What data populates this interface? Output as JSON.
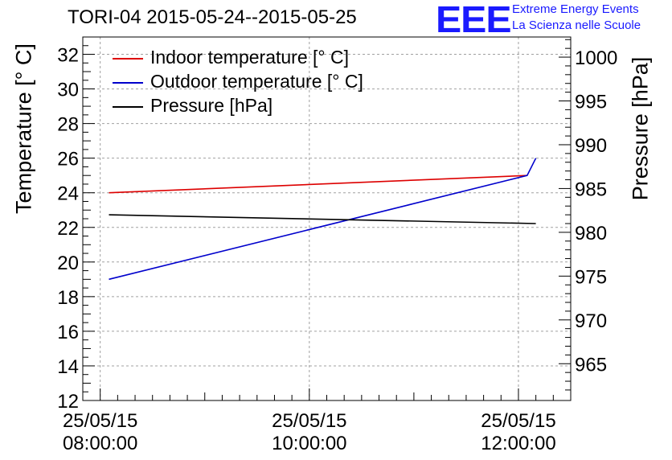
{
  "title": "TORI-04 2015-05-24--2015-05-25",
  "logo": {
    "mark": "EEE",
    "line1": "Extreme Energy Events",
    "line2": "La Scienza nelle Scuole",
    "color": "#1a1aff"
  },
  "chart_data": {
    "type": "line",
    "title": "TORI-04 2015-05-24--2015-05-25",
    "ylabel": "Temperature [° C]",
    "y2label": "Pressure [hPa]",
    "ylim": [
      12,
      33
    ],
    "y2lim": [
      960.8,
      1002.3
    ],
    "xlim": [
      "25/05/15 07:50:00",
      "25/05/15 12:30:00"
    ],
    "yticks": [
      12,
      14,
      16,
      18,
      20,
      22,
      24,
      26,
      28,
      30,
      32
    ],
    "y2ticks": [
      965,
      970,
      975,
      980,
      985,
      990,
      995,
      1000
    ],
    "xticks": [
      {
        "date": "25/05/15",
        "time": "08:00:00"
      },
      {
        "date": "25/05/15",
        "time": "10:00:00"
      },
      {
        "date": "25/05/15",
        "time": "12:00:00"
      }
    ],
    "grid": true,
    "legend": "top-left",
    "series": [
      {
        "name": "Indoor temperature [° C]",
        "color": "#dd0000",
        "axis": "left",
        "x": [
          "25/05/15 08:05:00",
          "25/05/15 12:05:00"
        ],
        "y": [
          24.0,
          25.0
        ]
      },
      {
        "name": "Outdoor temperature [° C]",
        "color": "#0000cc",
        "axis": "left",
        "x": [
          "25/05/15 08:05:00",
          "25/05/15 12:05:00",
          "25/05/15 12:10:00"
        ],
        "y": [
          19.0,
          25.0,
          26.0
        ]
      },
      {
        "name": "Pressure [hPa]",
        "color": "#000000",
        "axis": "right",
        "x": [
          "25/05/15 08:05:00",
          "25/05/15 12:10:00"
        ],
        "y": [
          982.0,
          981.0
        ]
      }
    ]
  }
}
